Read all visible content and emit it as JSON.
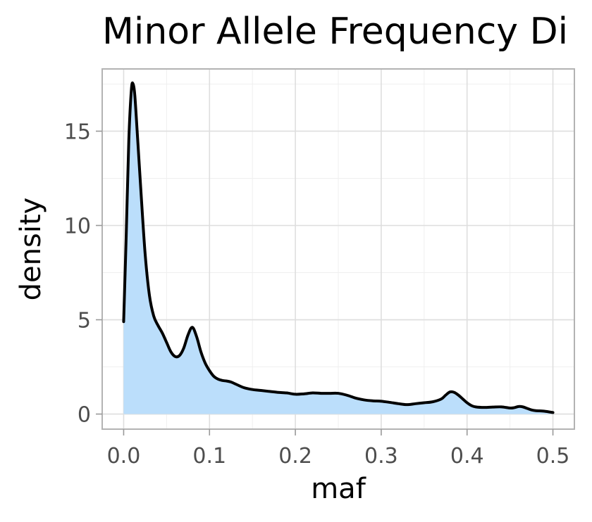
{
  "chart_data": {
    "type": "area",
    "title": "Minor Allele Frequency Di",
    "xlabel": "maf",
    "ylabel": "density",
    "xlim": [
      -0.025,
      0.525
    ],
    "ylim": [
      -0.8,
      18.3
    ],
    "x_ticks": [
      0.0,
      0.1,
      0.2,
      0.3,
      0.4,
      0.5
    ],
    "x_tick_labels": [
      "0.0",
      "0.1",
      "0.2",
      "0.3",
      "0.4",
      "0.5"
    ],
    "y_ticks": [
      0,
      5,
      10,
      15
    ],
    "y_tick_labels": [
      "0",
      "5",
      "10",
      "15"
    ],
    "grid": true,
    "legend": "none",
    "colors": {
      "fill": "#bbdefb",
      "line": "#000000",
      "panel_border": "#b3b3b3"
    },
    "series": [
      {
        "x": [
          0.0,
          0.003,
          0.006,
          0.009,
          0.011,
          0.013,
          0.016,
          0.02,
          0.025,
          0.03,
          0.035,
          0.04,
          0.045,
          0.05,
          0.055,
          0.06,
          0.065,
          0.07,
          0.075,
          0.08,
          0.085,
          0.09,
          0.095,
          0.1,
          0.105,
          0.11,
          0.115,
          0.12,
          0.125,
          0.13,
          0.14,
          0.15,
          0.16,
          0.17,
          0.18,
          0.19,
          0.2,
          0.21,
          0.22,
          0.23,
          0.24,
          0.25,
          0.26,
          0.27,
          0.28,
          0.29,
          0.3,
          0.31,
          0.32,
          0.33,
          0.34,
          0.35,
          0.36,
          0.37,
          0.375,
          0.38,
          0.385,
          0.39,
          0.395,
          0.4,
          0.405,
          0.41,
          0.42,
          0.43,
          0.44,
          0.45,
          0.455,
          0.46,
          0.465,
          0.47,
          0.475,
          0.48,
          0.49,
          0.5
        ],
        "values": [
          4.9,
          9.5,
          14.5,
          17.2,
          17.5,
          16.9,
          14.8,
          11.9,
          8.5,
          6.3,
          5.2,
          4.7,
          4.3,
          3.8,
          3.3,
          3.05,
          3.1,
          3.5,
          4.2,
          4.6,
          4.1,
          3.3,
          2.7,
          2.3,
          2.0,
          1.85,
          1.78,
          1.75,
          1.7,
          1.6,
          1.4,
          1.3,
          1.25,
          1.2,
          1.15,
          1.12,
          1.05,
          1.07,
          1.12,
          1.1,
          1.1,
          1.1,
          1.0,
          0.85,
          0.75,
          0.7,
          0.68,
          0.62,
          0.55,
          0.5,
          0.55,
          0.6,
          0.65,
          0.8,
          1.0,
          1.17,
          1.15,
          1.0,
          0.8,
          0.6,
          0.45,
          0.38,
          0.35,
          0.37,
          0.38,
          0.32,
          0.34,
          0.4,
          0.38,
          0.3,
          0.22,
          0.18,
          0.15,
          0.08
        ]
      }
    ]
  }
}
